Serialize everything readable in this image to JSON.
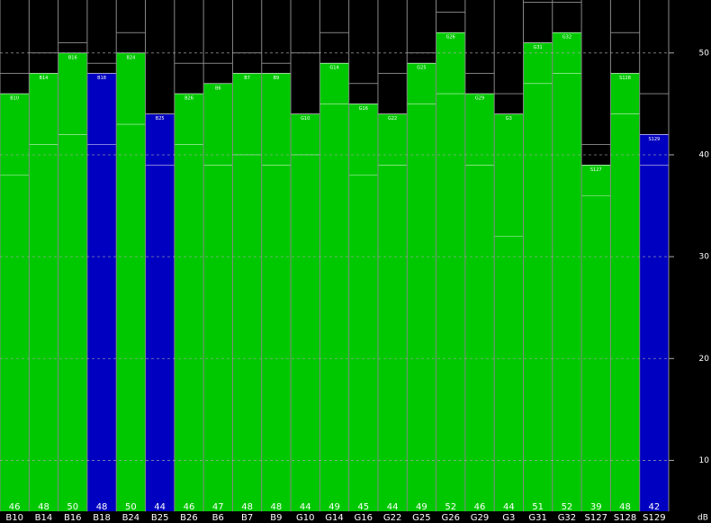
{
  "chart_data": {
    "type": "bar",
    "categories": [
      "B10",
      "B14",
      "B16",
      "B18",
      "B24",
      "B25",
      "B26",
      "B6",
      "B7",
      "B9",
      "G10",
      "G14",
      "G16",
      "G22",
      "G25",
      "G26",
      "G29",
      "G3",
      "G31",
      "G32",
      "S127",
      "S128",
      "S129"
    ],
    "values": [
      46,
      48,
      50,
      48,
      50,
      44,
      46,
      47,
      48,
      48,
      44,
      49,
      45,
      44,
      49,
      52,
      46,
      44,
      51,
      52,
      39,
      48,
      42
    ],
    "low_values": [
      38,
      41,
      42,
      41,
      43,
      39,
      41,
      39,
      40,
      39,
      40,
      45,
      38,
      39,
      45,
      46,
      39,
      32,
      47,
      48,
      36,
      44,
      39
    ],
    "peak_values": [
      48,
      50,
      51,
      49,
      52,
      null,
      49,
      49,
      50,
      49,
      50,
      52,
      47,
      48,
      50,
      54,
      48,
      46,
      55,
      55,
      41,
      52,
      46
    ],
    "colors": [
      "#00c800",
      "#00c800",
      "#00c800",
      "#0000c0",
      "#00c800",
      "#0000c0",
      "#00c800",
      "#00c800",
      "#00c800",
      "#00c800",
      "#00c800",
      "#00c800",
      "#00c800",
      "#00c800",
      "#00c800",
      "#00c800",
      "#00c800",
      "#00c800",
      "#00c800",
      "#00c800",
      "#00c800",
      "#00c800",
      "#0000c0"
    ],
    "ylim": [
      5,
      55.2
    ],
    "yticks": [
      10,
      20,
      30,
      40,
      50
    ],
    "y_unit": "dB",
    "grid": true
  }
}
